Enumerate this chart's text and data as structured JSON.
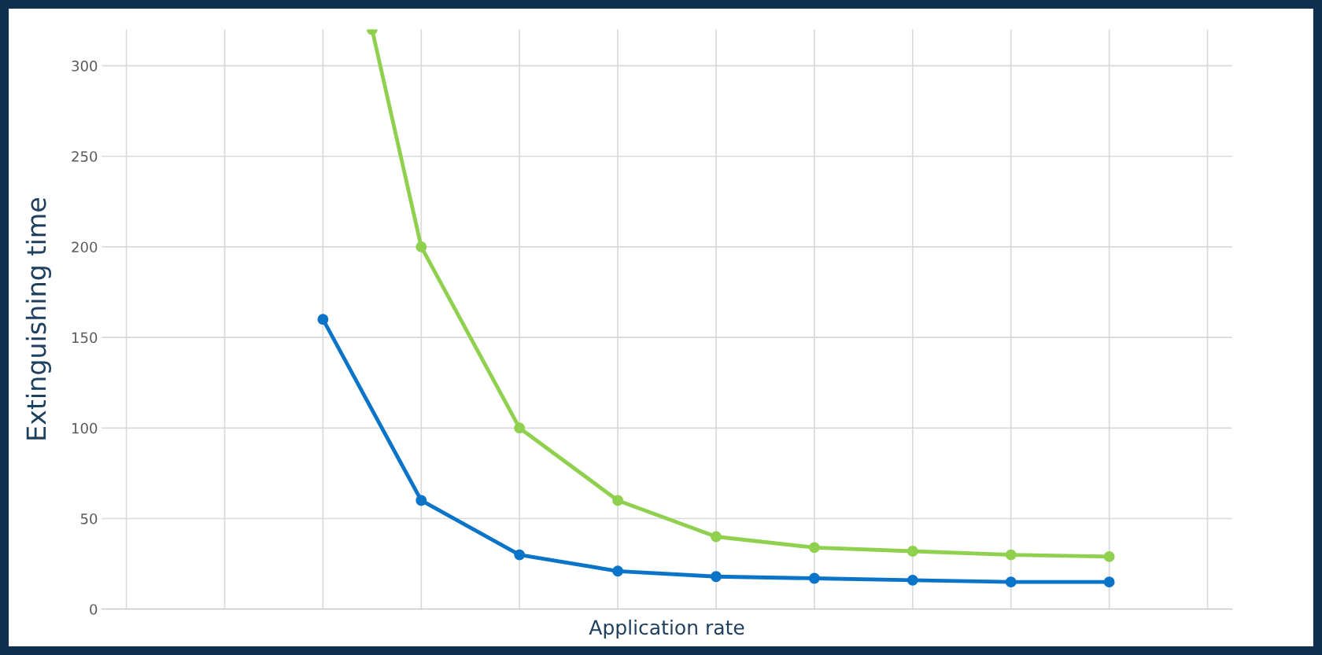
{
  "chart_data": {
    "type": "line",
    "xlabel": "Application rate",
    "ylabel": "Extinguishing time",
    "categories": [
      null,
      null,
      null,
      null,
      null,
      null,
      null,
      null,
      null,
      null,
      null,
      null,
      null,
      null,
      null,
      null,
      null,
      null,
      null,
      null,
      null,
      null,
      null
    ],
    "series": [
      {
        "color": "#0a74c8",
        "values": [
          null,
          null,
          null,
          null,
          160,
          null,
          60,
          null,
          30,
          null,
          21,
          null,
          18,
          null,
          17,
          null,
          16,
          null,
          15,
          null,
          15,
          null,
          null
        ]
      },
      {
        "color": "#8fd14f",
        "values": [
          null,
          null,
          null,
          null,
          null,
          320,
          200,
          null,
          100,
          null,
          60,
          null,
          40,
          null,
          34,
          null,
          32,
          null,
          30,
          null,
          29,
          null,
          null
        ]
      }
    ],
    "ylim": [
      0,
      320
    ],
    "yticks": [
      0,
      50,
      100,
      150,
      200,
      250,
      300
    ],
    "grid": true,
    "marker": "circle",
    "line_style": "solid"
  }
}
